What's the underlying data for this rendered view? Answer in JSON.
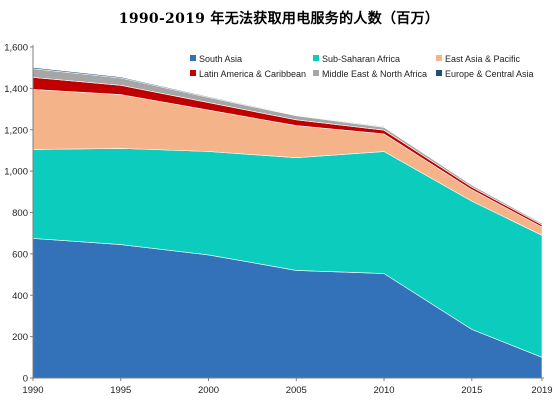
{
  "chart_data": {
    "type": "area",
    "stacked": true,
    "title": "1990-2019 年无法获取用电服务的人数（百万）",
    "xlabel": "",
    "ylabel": "",
    "x": [
      1990,
      1995,
      2000,
      2005,
      2010,
      2015,
      2019
    ],
    "xlim": [
      1990,
      2019
    ],
    "ylim": [
      0,
      1600
    ],
    "yticks": [
      0,
      200,
      400,
      600,
      800,
      1000,
      1200,
      1400,
      1600
    ],
    "yticklabels": [
      "0",
      "200",
      "400",
      "600",
      "800",
      "1,000",
      "1,200",
      "1,400",
      "1,600"
    ],
    "xticklabels": [
      "1990",
      "1995",
      "2000",
      "2005",
      "2010",
      "2015",
      "2019"
    ],
    "grid": false,
    "legend_position": "top",
    "series": [
      {
        "name": "South Asia",
        "color": "#3372b8",
        "values": [
          675,
          645,
          595,
          520,
          505,
          235,
          100
        ]
      },
      {
        "name": "Sub-Saharan Africa",
        "color": "#0ccdbd",
        "values": [
          430,
          465,
          500,
          545,
          590,
          620,
          590
        ]
      },
      {
        "name": "East Asia & Pacific",
        "color": "#f5b38a",
        "values": [
          290,
          260,
          200,
          155,
          85,
          55,
          40
        ]
      },
      {
        "name": "Latin America & Caribbean",
        "color": "#c00000",
        "values": [
          58,
          45,
          36,
          28,
          18,
          13,
          10
        ]
      },
      {
        "name": "Middle East & North Africa",
        "color": "#a6a6a6",
        "values": [
          42,
          35,
          25,
          20,
          14,
          10,
          8
        ]
      },
      {
        "name": "Europe & Central Asia",
        "color": "#1f4e79",
        "values": [
          6,
          5,
          4,
          3,
          3,
          2,
          2
        ]
      }
    ]
  }
}
